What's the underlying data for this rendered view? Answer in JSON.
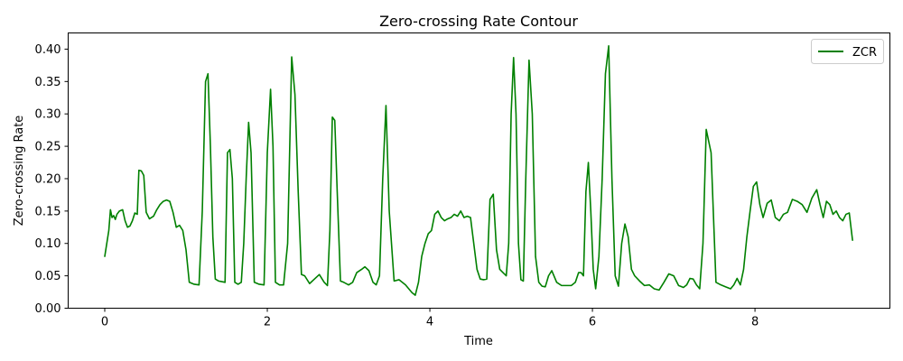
{
  "chart_data": {
    "type": "line",
    "title": "Zero-crossing Rate Contour",
    "xlabel": "Time",
    "ylabel": "Zero-crossing Rate",
    "xlim": [
      -0.45,
      9.66
    ],
    "ylim": [
      0,
      0.425
    ],
    "xticks": [
      0,
      2,
      4,
      6,
      8
    ],
    "xtick_labels": [
      "0",
      "2",
      "4",
      "6",
      "8"
    ],
    "yticks": [
      0,
      0.05,
      0.1,
      0.15,
      0.2,
      0.25,
      0.3,
      0.35,
      0.4
    ],
    "ytick_labels": [
      "0.00",
      "0.05",
      "0.10",
      "0.15",
      "0.20",
      "0.25",
      "0.30",
      "0.35",
      "0.40"
    ],
    "grid": false,
    "legend": {
      "position": "top-right",
      "entries": [
        "ZCR"
      ]
    },
    "series": [
      {
        "name": "ZCR",
        "color": "#008000",
        "x": [
          0.0,
          0.05,
          0.07,
          0.09,
          0.11,
          0.13,
          0.15,
          0.18,
          0.22,
          0.25,
          0.28,
          0.31,
          0.34,
          0.37,
          0.4,
          0.42,
          0.45,
          0.48,
          0.51,
          0.55,
          0.6,
          0.64,
          0.68,
          0.72,
          0.76,
          0.8,
          0.84,
          0.88,
          0.92,
          0.96,
          1.0,
          1.04,
          1.1,
          1.16,
          1.2,
          1.24,
          1.27,
          1.3,
          1.33,
          1.36,
          1.4,
          1.44,
          1.48,
          1.51,
          1.54,
          1.57,
          1.6,
          1.64,
          1.68,
          1.71,
          1.74,
          1.77,
          1.8,
          1.84,
          1.9,
          1.96,
          2.0,
          2.04,
          2.07,
          2.1,
          2.15,
          2.2,
          2.25,
          2.3,
          2.34,
          2.38,
          2.42,
          2.46,
          2.52,
          2.58,
          2.64,
          2.7,
          2.74,
          2.77,
          2.8,
          2.83,
          2.86,
          2.9,
          2.94,
          3.0,
          3.05,
          3.1,
          3.16,
          3.2,
          3.25,
          3.3,
          3.34,
          3.38,
          3.42,
          3.46,
          3.5,
          3.56,
          3.62,
          3.7,
          3.78,
          3.82,
          3.86,
          3.9,
          3.94,
          3.98,
          4.02,
          4.06,
          4.1,
          4.14,
          4.18,
          4.22,
          4.26,
          4.3,
          4.34,
          4.38,
          4.42,
          4.46,
          4.5,
          4.54,
          4.58,
          4.62,
          4.66,
          4.7,
          4.74,
          4.78,
          4.82,
          4.86,
          4.9,
          4.94,
          4.97,
          5.0,
          5.03,
          5.06,
          5.09,
          5.12,
          5.15,
          5.18,
          5.22,
          5.26,
          5.3,
          5.34,
          5.38,
          5.42,
          5.46,
          5.5,
          5.56,
          5.62,
          5.68,
          5.74,
          5.79,
          5.83,
          5.86,
          5.89,
          5.92,
          5.95,
          5.98,
          6.01,
          6.04,
          6.08,
          6.12,
          6.16,
          6.2,
          6.24,
          6.28,
          6.32,
          6.36,
          6.4,
          6.44,
          6.48,
          6.52,
          6.58,
          6.64,
          6.7,
          6.76,
          6.82,
          6.88,
          6.94,
          7.0,
          7.06,
          7.12,
          7.16,
          7.2,
          7.24,
          7.28,
          7.32,
          7.36,
          7.4,
          7.46,
          7.52,
          7.58,
          7.64,
          7.7,
          7.74,
          7.78,
          7.82,
          7.86,
          7.9,
          7.94,
          7.98,
          8.02,
          8.06,
          8.1,
          8.15,
          8.2,
          8.25,
          8.3,
          8.35,
          8.4,
          8.46,
          8.52,
          8.58,
          8.64,
          8.7,
          8.76,
          8.8,
          8.84,
          8.88,
          8.92,
          8.96,
          9.0,
          9.04,
          9.08,
          9.12,
          9.16,
          9.2
        ],
        "y": [
          0.08,
          0.12,
          0.152,
          0.14,
          0.143,
          0.137,
          0.145,
          0.15,
          0.152,
          0.135,
          0.125,
          0.127,
          0.135,
          0.147,
          0.145,
          0.213,
          0.212,
          0.205,
          0.148,
          0.138,
          0.142,
          0.152,
          0.16,
          0.165,
          0.167,
          0.165,
          0.148,
          0.125,
          0.128,
          0.12,
          0.09,
          0.04,
          0.037,
          0.036,
          0.15,
          0.35,
          0.362,
          0.25,
          0.11,
          0.045,
          0.042,
          0.041,
          0.04,
          0.24,
          0.245,
          0.2,
          0.04,
          0.037,
          0.04,
          0.1,
          0.2,
          0.287,
          0.24,
          0.04,
          0.037,
          0.036,
          0.24,
          0.338,
          0.25,
          0.04,
          0.036,
          0.036,
          0.1,
          0.388,
          0.33,
          0.18,
          0.052,
          0.05,
          0.038,
          0.045,
          0.052,
          0.04,
          0.035,
          0.12,
          0.295,
          0.29,
          0.18,
          0.042,
          0.04,
          0.036,
          0.04,
          0.055,
          0.06,
          0.064,
          0.058,
          0.04,
          0.036,
          0.05,
          0.2,
          0.313,
          0.15,
          0.042,
          0.044,
          0.036,
          0.024,
          0.02,
          0.04,
          0.08,
          0.1,
          0.115,
          0.12,
          0.145,
          0.15,
          0.14,
          0.135,
          0.138,
          0.14,
          0.145,
          0.142,
          0.15,
          0.14,
          0.142,
          0.14,
          0.1,
          0.06,
          0.045,
          0.044,
          0.045,
          0.168,
          0.176,
          0.09,
          0.06,
          0.055,
          0.05,
          0.1,
          0.3,
          0.387,
          0.3,
          0.1,
          0.044,
          0.042,
          0.2,
          0.383,
          0.3,
          0.08,
          0.04,
          0.034,
          0.033,
          0.05,
          0.058,
          0.04,
          0.035,
          0.035,
          0.035,
          0.04,
          0.055,
          0.055,
          0.05,
          0.18,
          0.225,
          0.15,
          0.06,
          0.03,
          0.08,
          0.2,
          0.362,
          0.405,
          0.2,
          0.05,
          0.034,
          0.1,
          0.13,
          0.11,
          0.06,
          0.05,
          0.042,
          0.035,
          0.036,
          0.03,
          0.028,
          0.04,
          0.053,
          0.05,
          0.035,
          0.032,
          0.036,
          0.046,
          0.045,
          0.036,
          0.03,
          0.1,
          0.276,
          0.24,
          0.04,
          0.036,
          0.033,
          0.03,
          0.036,
          0.046,
          0.036,
          0.06,
          0.11,
          0.15,
          0.188,
          0.195,
          0.16,
          0.14,
          0.162,
          0.167,
          0.14,
          0.135,
          0.145,
          0.148,
          0.168,
          0.165,
          0.16,
          0.148,
          0.17,
          0.183,
          0.16,
          0.14,
          0.165,
          0.16,
          0.145,
          0.15,
          0.14,
          0.135,
          0.145,
          0.147,
          0.105
        ]
      }
    ]
  }
}
